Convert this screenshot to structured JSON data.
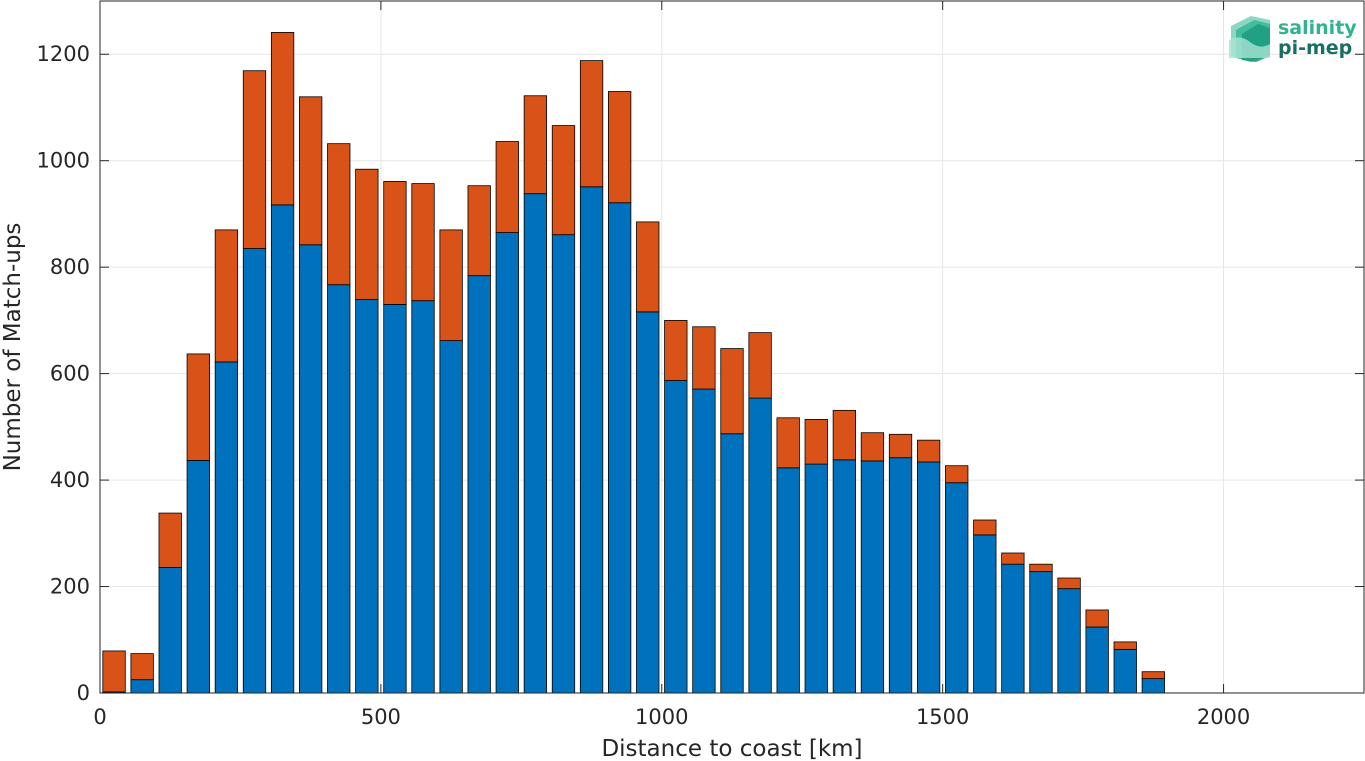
{
  "chart_data": {
    "type": "bar",
    "stacked": true,
    "xlabel": "Distance to coast [km]",
    "ylabel": "Number of Match-ups",
    "xlim": [
      0,
      2250
    ],
    "ylim": [
      0,
      1300
    ],
    "xticks": [
      0,
      500,
      1000,
      1500,
      2000
    ],
    "yticks": [
      0,
      200,
      400,
      600,
      800,
      1000,
      1200
    ],
    "grid": true,
    "bin_width": 50,
    "x": [
      25,
      75,
      125,
      175,
      225,
      275,
      325,
      375,
      425,
      475,
      525,
      575,
      625,
      675,
      725,
      775,
      825,
      875,
      925,
      975,
      1025,
      1075,
      1125,
      1175,
      1225,
      1275,
      1325,
      1375,
      1425,
      1475,
      1525,
      1575,
      1625,
      1675,
      1725,
      1775,
      1825,
      1875
    ],
    "series": [
      {
        "color": "#0072BD",
        "values": [
          2,
          25,
          236,
          437,
          622,
          835,
          917,
          842,
          767,
          739,
          730,
          737,
          662,
          784,
          865,
          938,
          861,
          951,
          921,
          716,
          587,
          571,
          487,
          554,
          423,
          430,
          438,
          436,
          442,
          434,
          395,
          297,
          242,
          228,
          196,
          124,
          82,
          27
        ]
      },
      {
        "color": "#D95319",
        "values": [
          77,
          49,
          102,
          200,
          248,
          334,
          324,
          278,
          265,
          245,
          231,
          220,
          208,
          169,
          171,
          184,
          205,
          237,
          209,
          169,
          113,
          117,
          160,
          123,
          94,
          84,
          93,
          53,
          44,
          41,
          32,
          28,
          21,
          14,
          20,
          32,
          14,
          13
        ]
      }
    ]
  },
  "logo": {
    "line1": "salinity",
    "line2": "pi-mep"
  }
}
